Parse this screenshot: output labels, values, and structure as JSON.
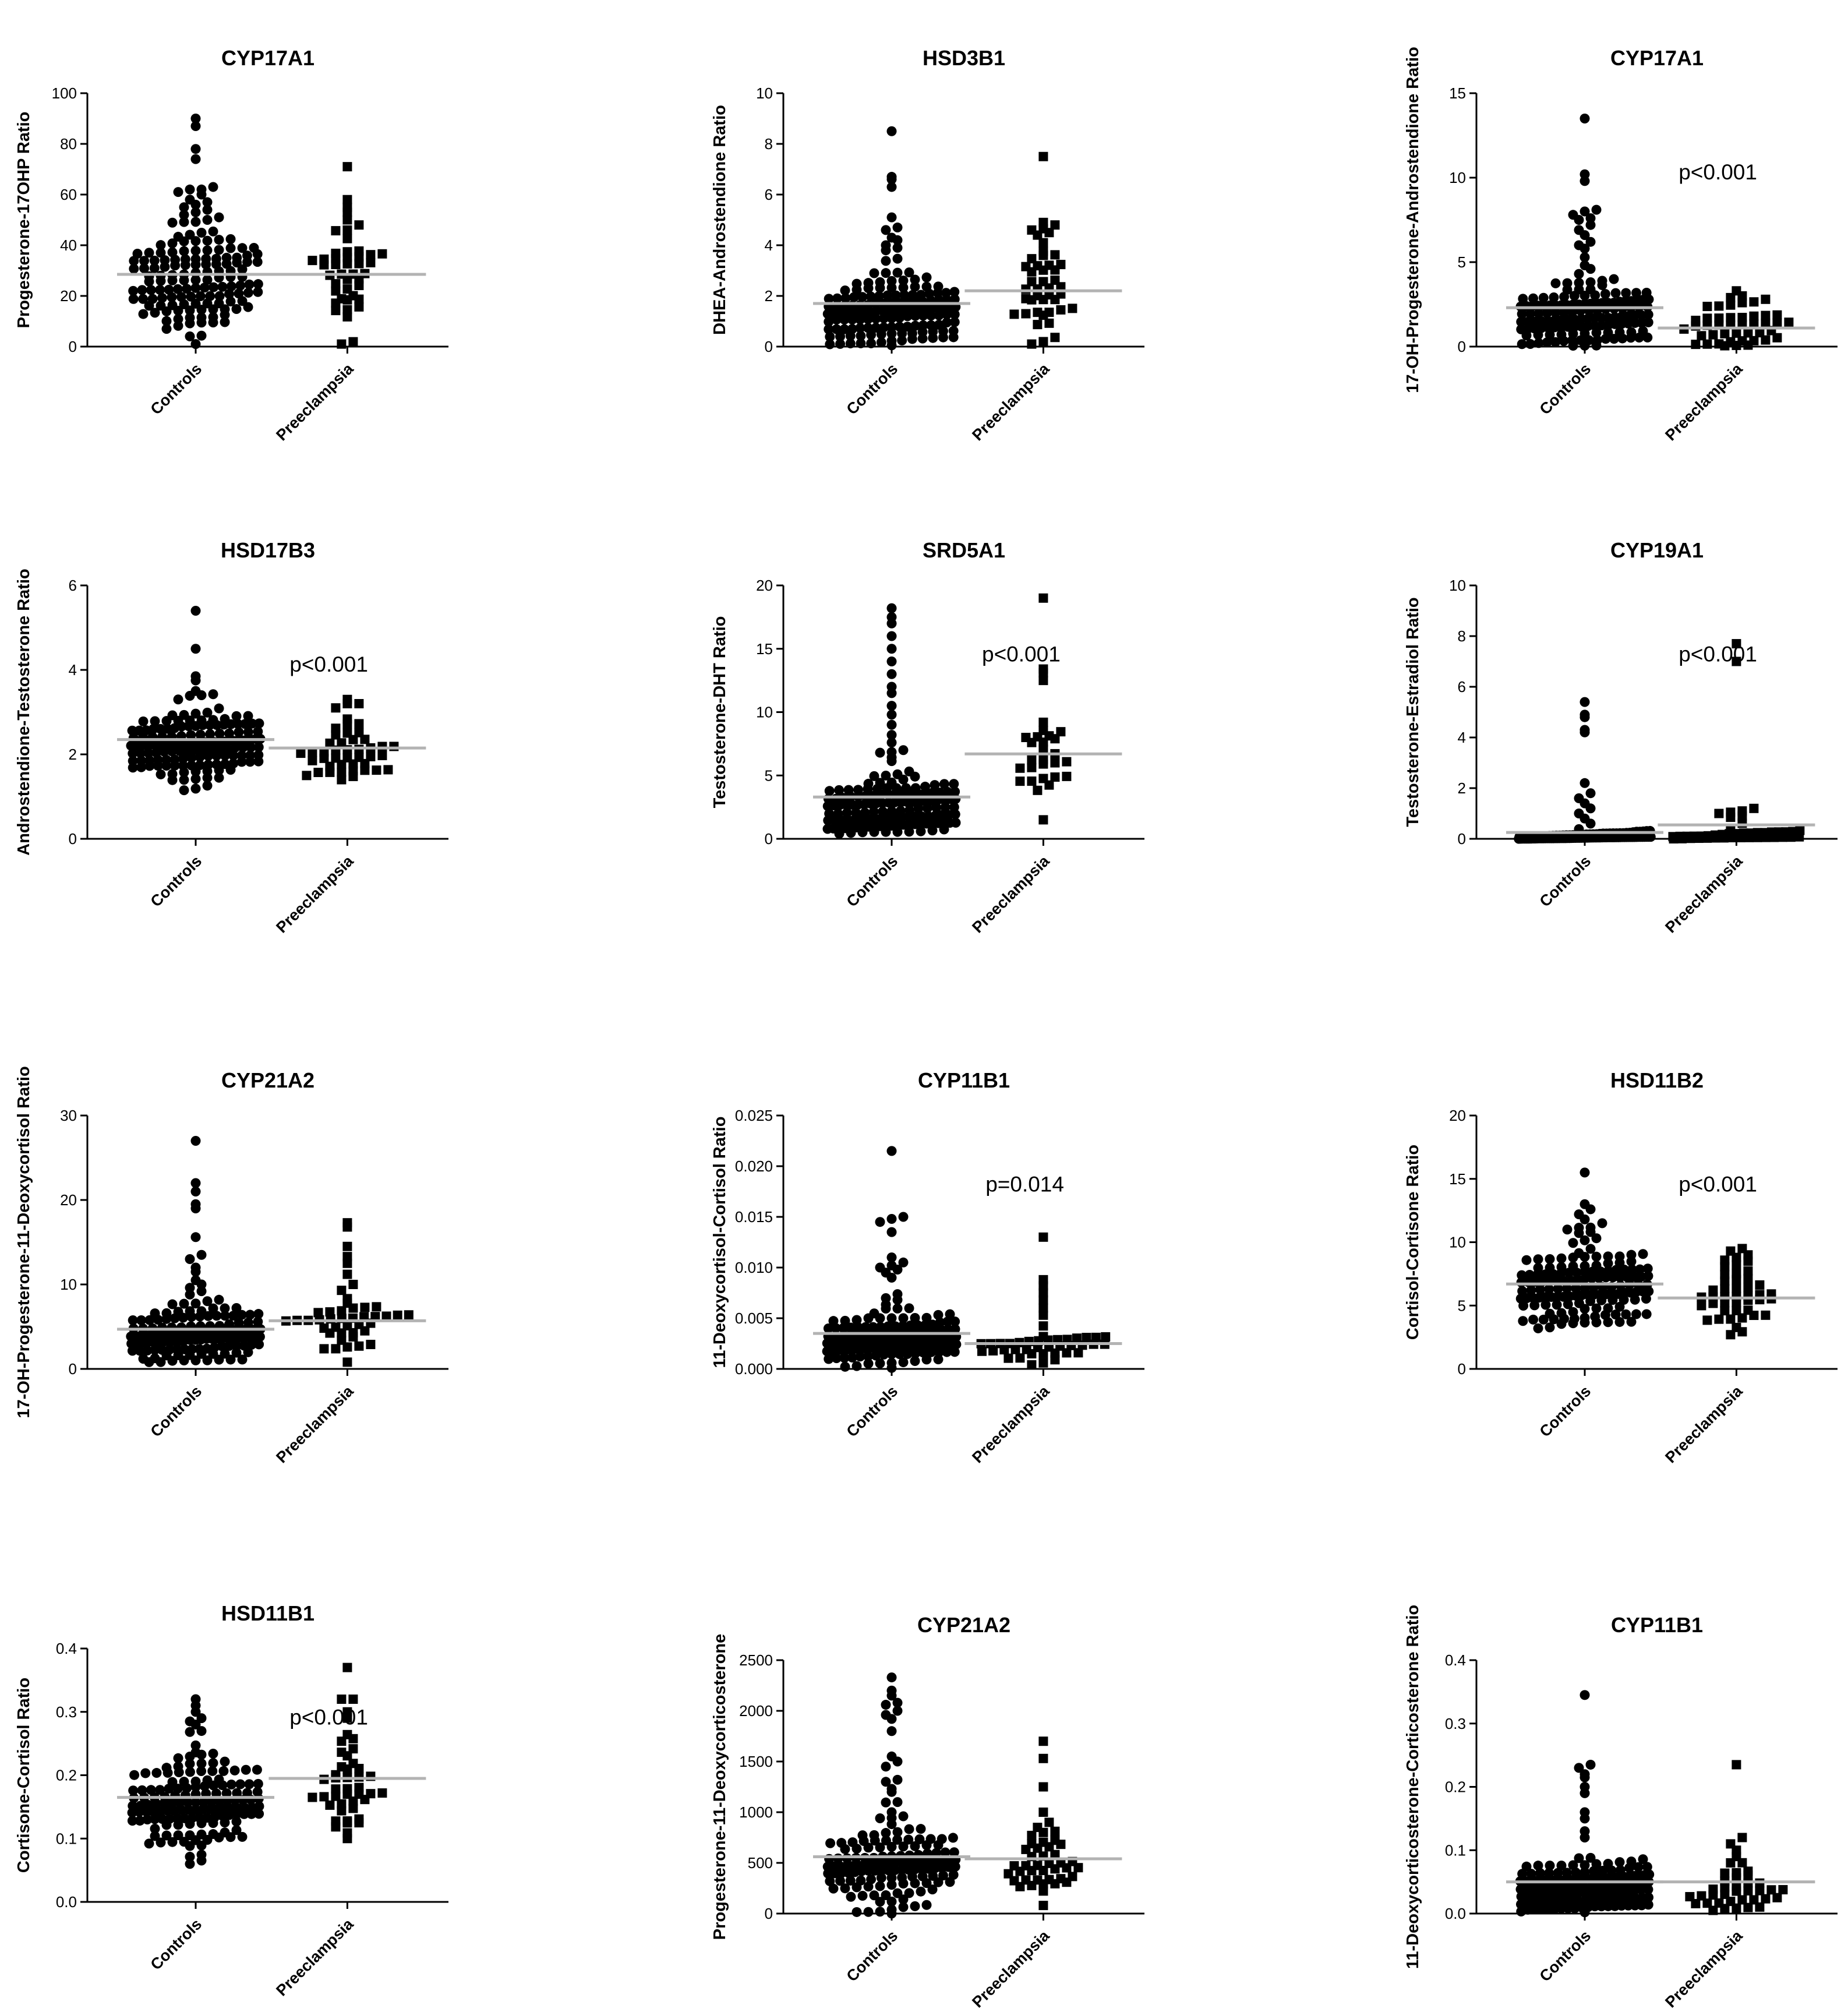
{
  "figure": {
    "marker_color": "#000000",
    "mean_line_color": "#b3b3b3",
    "axis_color": "#000000"
  },
  "chart_data": [
    {
      "type": "scatter",
      "title": "CYP17A1",
      "ylabel": "Progesterone-17OHP Ratio",
      "ylim": [
        0,
        100
      ],
      "yticks": [
        "0",
        "20",
        "40",
        "60",
        "80",
        "100"
      ],
      "categories": [
        "Controls",
        "Preeclampsia"
      ],
      "annotation": "",
      "series": [
        {
          "name": "Controls",
          "marker": "circle",
          "n": 150,
          "mean": 28.5,
          "median": 26,
          "spread": 11,
          "min": 1,
          "max": 90,
          "outliers": [
            90,
            87,
            78,
            74,
            63,
            62,
            62,
            61,
            60,
            58,
            57,
            56,
            55,
            54,
            53,
            52,
            51,
            50
          ]
        },
        {
          "name": "Preeclampsia",
          "marker": "square",
          "n": 45,
          "mean": 28.5,
          "median": 27,
          "spread": 10,
          "min": 1,
          "max": 71,
          "outliers": [
            71,
            58,
            55,
            53,
            50,
            48,
            46
          ]
        }
      ]
    },
    {
      "type": "scatter",
      "title": "HSD3B1",
      "ylabel": "DHEA-Androstendione Ratio",
      "ylim": [
        0,
        10
      ],
      "yticks": [
        "0",
        "2",
        "4",
        "6",
        "8",
        "10"
      ],
      "categories": [
        "Controls",
        "Preeclampsia"
      ],
      "annotation": "",
      "series": [
        {
          "name": "Controls",
          "marker": "circle",
          "n": 150,
          "mean": 1.7,
          "median": 1.5,
          "spread": 0.8,
          "min": 0.05,
          "max": 8.5,
          "outliers": [
            8.5,
            6.7,
            6.6,
            6.3,
            5.1,
            4.7,
            4.6,
            4.3,
            4.2,
            4.0,
            3.9,
            3.8
          ]
        },
        {
          "name": "Preeclampsia",
          "marker": "square",
          "n": 45,
          "mean": 2.2,
          "median": 2.0,
          "spread": 1.0,
          "min": 0.1,
          "max": 7.5,
          "outliers": [
            7.5,
            4.9,
            4.8,
            4.6,
            4.5,
            4.4,
            4.1
          ]
        }
      ]
    },
    {
      "type": "scatter",
      "title": "CYP17A1",
      "ylabel": "17-OH-Progesterone-Androstendione Ratio",
      "ylim": [
        0,
        15
      ],
      "yticks": [
        "0",
        "5",
        "10",
        "15"
      ],
      "categories": [
        "Controls",
        "Preeclampsia"
      ],
      "annotation": "p<0.001",
      "series": [
        {
          "name": "Controls",
          "marker": "circle",
          "n": 150,
          "mean": 2.3,
          "median": 1.8,
          "spread": 1.3,
          "min": 0.05,
          "max": 13.5,
          "outliers": [
            13.5,
            10.2,
            9.8,
            8.1,
            8.0,
            7.8,
            7.6,
            7.5,
            7.2,
            6.9,
            6.6,
            6.2,
            6.0,
            5.8
          ]
        },
        {
          "name": "Preeclampsia",
          "marker": "square",
          "n": 45,
          "mean": 1.1,
          "median": 0.9,
          "spread": 0.6,
          "min": 0.05,
          "max": 3.3,
          "outliers": [
            3.3,
            3.0,
            2.9,
            2.8,
            2.6,
            2.4
          ]
        }
      ]
    },
    {
      "type": "scatter",
      "title": "HSD17B3",
      "ylabel": "Androstendione-Testosterone Ratio",
      "ylim": [
        0,
        6
      ],
      "yticks": [
        "0",
        "2",
        "4",
        "6"
      ],
      "categories": [
        "Controls",
        "Preeclampsia"
      ],
      "annotation": "p<0.001",
      "series": [
        {
          "name": "Controls",
          "marker": "circle",
          "n": 150,
          "mean": 2.35,
          "median": 2.3,
          "spread": 0.45,
          "min": 1.15,
          "max": 5.4,
          "outliers": [
            5.4,
            4.5,
            3.85,
            3.75,
            3.5,
            3.4,
            3.3
          ]
        },
        {
          "name": "Preeclampsia",
          "marker": "square",
          "n": 45,
          "mean": 2.15,
          "median": 2.1,
          "spread": 0.4,
          "min": 1.4,
          "max": 3.3,
          "outliers": [
            3.3,
            3.2,
            3.2,
            3.1
          ]
        }
      ]
    },
    {
      "type": "scatter",
      "title": "SRD5A1",
      "ylabel": "Testosterone-DHT Ratio",
      "ylim": [
        0,
        20
      ],
      "yticks": [
        "0",
        "5",
        "10",
        "15",
        "20"
      ],
      "categories": [
        "Controls",
        "Preeclampsia"
      ],
      "annotation": "p<0.001",
      "series": [
        {
          "name": "Controls",
          "marker": "circle",
          "n": 150,
          "mean": 3.3,
          "median": 2.5,
          "spread": 1.5,
          "min": 0.4,
          "max": 18.2,
          "outliers": [
            18.2,
            17.5,
            17.0,
            16.0,
            15.0,
            14.0,
            13.0,
            12.0,
            11.5,
            10.5,
            9.8,
            9.0,
            8.2,
            7.6,
            7.0,
            6.8
          ]
        },
        {
          "name": "Preeclampsia",
          "marker": "square",
          "n": 30,
          "mean": 6.7,
          "median": 6.2,
          "spread": 1.6,
          "min": 1.5,
          "max": 19.0,
          "outliers": [
            19.0,
            13.4,
            13.1,
            12.5,
            9.2,
            8.0,
            7.9,
            7.6
          ]
        }
      ]
    },
    {
      "type": "scatter",
      "title": "CYP19A1",
      "ylabel": "Testosterone-Estradiol Ratio",
      "ylim": [
        0,
        10
      ],
      "yticks": [
        "0",
        "2",
        "4",
        "6",
        "8",
        "10"
      ],
      "categories": [
        "Controls",
        "Preeclampsia"
      ],
      "annotation": "p<0.001",
      "series": [
        {
          "name": "Controls",
          "marker": "circle",
          "n": 120,
          "mean": 0.25,
          "median": 0.05,
          "spread": 0.15,
          "min": 0.0,
          "max": 5.4,
          "outliers": [
            5.4,
            4.9,
            4.8,
            4.3,
            4.2,
            2.2,
            1.8,
            1.6,
            1.4,
            1.2,
            1.0,
            0.8,
            0.6
          ]
        },
        {
          "name": "Preeclampsia",
          "marker": "square",
          "n": 45,
          "mean": 0.55,
          "median": 0.1,
          "spread": 0.2,
          "min": 0.0,
          "max": 7.7,
          "outliers": [
            7.7,
            7.0,
            1.2,
            1.1,
            1.05,
            1.0,
            0.9,
            0.85
          ]
        }
      ]
    },
    {
      "type": "scatter",
      "title": "CYP21A2",
      "ylabel": "17-OH-Progesterone-11-Deoxycortisol Ratio",
      "ylim": [
        0,
        30
      ],
      "yticks": [
        "0",
        "10",
        "20",
        "30"
      ],
      "categories": [
        "Controls",
        "Preeclampsia"
      ],
      "annotation": "",
      "series": [
        {
          "name": "Controls",
          "marker": "circle",
          "n": 150,
          "mean": 4.7,
          "median": 4.0,
          "spread": 1.8,
          "min": 0.8,
          "max": 27.0,
          "outliers": [
            27.0,
            22.0,
            21.0,
            19.5,
            19.0,
            15.6,
            13.5,
            13.0,
            12.0,
            11.5,
            10.5,
            10.0,
            9.6,
            9.2,
            8.8
          ]
        },
        {
          "name": "Preeclampsia",
          "marker": "square",
          "n": 45,
          "mean": 5.7,
          "median": 5.0,
          "spread": 2.0,
          "min": 0.8,
          "max": 17.3,
          "outliers": [
            17.3,
            16.8,
            14.5,
            13.3,
            12.5,
            11.2,
            10.0,
            9.3
          ]
        }
      ]
    },
    {
      "type": "scatter",
      "title": "CYP11B1",
      "ylabel": "11-Deoxycortisol-Cortisol Ratio",
      "ylim": [
        0,
        0.025
      ],
      "yticks": [
        "0.000",
        "0.005",
        "0.010",
        "0.015",
        "0.020",
        "0.025"
      ],
      "categories": [
        "Controls",
        "Preeclampsia"
      ],
      "annotation": "p=0.014",
      "series": [
        {
          "name": "Controls",
          "marker": "circle",
          "n": 150,
          "mean": 0.0035,
          "median": 0.003,
          "spread": 0.0017,
          "min": 0.0001,
          "max": 0.0215,
          "outliers": [
            0.0215,
            0.015,
            0.0148,
            0.0145,
            0.0135,
            0.011,
            0.0105,
            0.0102,
            0.01,
            0.0098,
            0.0095,
            0.009
          ]
        },
        {
          "name": "Preeclampsia",
          "marker": "square",
          "n": 45,
          "mean": 0.0025,
          "median": 0.002,
          "spread": 0.0009,
          "min": 0.0004,
          "max": 0.013,
          "outliers": [
            0.013,
            0.0088,
            0.0082,
            0.0075,
            0.0068,
            0.006,
            0.0053
          ]
        }
      ]
    },
    {
      "type": "scatter",
      "title": "HSD11B2",
      "ylabel": "Cortisol-Cortisone Ratio",
      "ylim": [
        0,
        20
      ],
      "yticks": [
        "0",
        "5",
        "10",
        "15",
        "20"
      ],
      "categories": [
        "Controls",
        "Preeclampsia"
      ],
      "annotation": "p<0.001",
      "series": [
        {
          "name": "Controls",
          "marker": "circle",
          "n": 150,
          "mean": 6.7,
          "median": 6.6,
          "spread": 1.7,
          "min": 3.2,
          "max": 15.5,
          "outliers": [
            15.5,
            13.0,
            12.6,
            12.2,
            11.8,
            11.5,
            11.0
          ]
        },
        {
          "name": "Preeclampsia",
          "marker": "square",
          "n": 45,
          "mean": 5.6,
          "median": 5.5,
          "spread": 1.6,
          "min": 2.7,
          "max": 9.5,
          "outliers": [
            9.5,
            9.3,
            9.0,
            8.8,
            8.5
          ]
        }
      ]
    },
    {
      "type": "scatter",
      "title": "HSD11B1",
      "ylabel": "Cortisone-Cortisol Ratio",
      "ylim": [
        0,
        0.4
      ],
      "yticks": [
        "0.0",
        "0.1",
        "0.2",
        "0.3",
        "0.4"
      ],
      "categories": [
        "Controls",
        "Preeclampsia"
      ],
      "annotation": "p<0.001",
      "series": [
        {
          "name": "Controls",
          "marker": "circle",
          "n": 150,
          "mean": 0.165,
          "median": 0.16,
          "spread": 0.045,
          "min": 0.06,
          "max": 0.32,
          "outliers": [
            0.32,
            0.31,
            0.3,
            0.29,
            0.285,
            0.28
          ]
        },
        {
          "name": "Preeclampsia",
          "marker": "square",
          "n": 45,
          "mean": 0.195,
          "median": 0.19,
          "spread": 0.05,
          "min": 0.1,
          "max": 0.37,
          "outliers": [
            0.37,
            0.32,
            0.32,
            0.3,
            0.29
          ]
        }
      ]
    },
    {
      "type": "scatter",
      "title": "CYP21A2",
      "ylabel": "Progesterone-11-Deoxycorticosterone",
      "ylim": [
        0,
        2500
      ],
      "yticks": [
        "0",
        "500",
        "1000",
        "1500",
        "2000",
        "2500"
      ],
      "categories": [
        "Controls",
        "Preeclampsia"
      ],
      "annotation": "",
      "series": [
        {
          "name": "Controls",
          "marker": "circle",
          "n": 150,
          "mean": 560,
          "median": 480,
          "spread": 220,
          "min": 0,
          "max": 2330,
          "outliers": [
            2330,
            2200,
            2150,
            2080,
            2060,
            2000,
            1960,
            1920,
            1800,
            1550,
            1500,
            1450,
            1320,
            1300,
            1230,
            1200,
            1100,
            1000,
            960
          ]
        },
        {
          "name": "Preeclampsia",
          "marker": "square",
          "n": 45,
          "mean": 540,
          "median": 510,
          "spread": 160,
          "min": 80,
          "max": 1700,
          "outliers": [
            1700,
            1530,
            1250,
            1000,
            900,
            850,
            800
          ]
        }
      ]
    },
    {
      "type": "scatter",
      "title": "CYP11B1",
      "ylabel": "11-Deoxycorticosterone-Corticosterone Ratio",
      "ylim": [
        0,
        0.4
      ],
      "yticks": [
        "0.0",
        "0.1",
        "0.2",
        "0.3",
        "0.4"
      ],
      "categories": [
        "Controls",
        "Preeclampsia"
      ],
      "annotation": "",
      "series": [
        {
          "name": "Controls",
          "marker": "circle",
          "n": 150,
          "mean": 0.05,
          "median": 0.04,
          "spread": 0.025,
          "min": 0.002,
          "max": 0.345,
          "outliers": [
            0.345,
            0.235,
            0.23,
            0.22,
            0.215,
            0.2,
            0.19,
            0.16,
            0.15,
            0.13,
            0.12
          ]
        },
        {
          "name": "Preeclampsia",
          "marker": "square",
          "n": 40,
          "mean": 0.05,
          "median": 0.04,
          "spread": 0.022,
          "min": 0.005,
          "max": 0.235,
          "outliers": [
            0.235,
            0.12,
            0.11,
            0.1,
            0.09,
            0.08
          ]
        }
      ]
    }
  ]
}
